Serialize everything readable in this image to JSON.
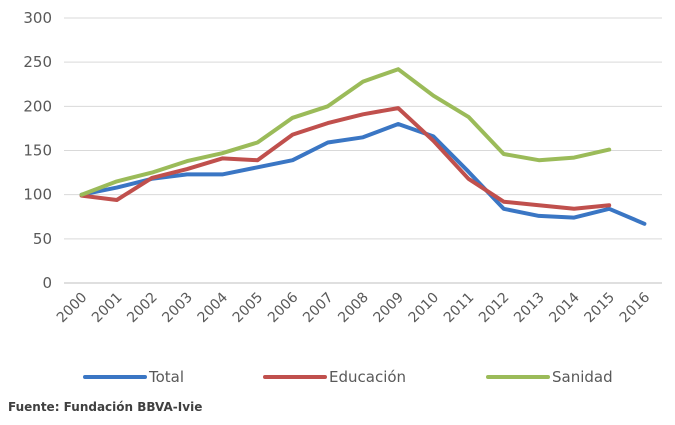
{
  "chart_data": {
    "type": "line",
    "categories": [
      "2000",
      "2001",
      "2002",
      "2003",
      "2004",
      "2005",
      "2006",
      "2007",
      "2008",
      "2009",
      "2010",
      "2011",
      "2012",
      "2013",
      "2014",
      "2015",
      "2016"
    ],
    "series": [
      {
        "name": "Total",
        "color": "#3a76c4",
        "values": [
          100,
          108,
          118,
          123,
          123,
          131,
          139,
          159,
          165,
          180,
          166,
          126,
          84,
          76,
          74,
          84,
          67
        ]
      },
      {
        "name": "Educación",
        "color": "#c0504d",
        "values": [
          99,
          94,
          119,
          129,
          141,
          139,
          168,
          181,
          191,
          198,
          161,
          118,
          92,
          88,
          84,
          88,
          null
        ]
      },
      {
        "name": "Sanidad",
        "color": "#9bbb59",
        "values": [
          100,
          115,
          125,
          138,
          147,
          159,
          187,
          200,
          228,
          242,
          212,
          188,
          146,
          139,
          142,
          151,
          null
        ]
      }
    ],
    "ylim": [
      0,
      300
    ],
    "yticks": [
      "0",
      "50",
      "100",
      "150",
      "200",
      "250",
      "300"
    ],
    "grid": true,
    "legend": "bottom"
  },
  "source": "Fuente: Fundación BBVA-Ivie"
}
